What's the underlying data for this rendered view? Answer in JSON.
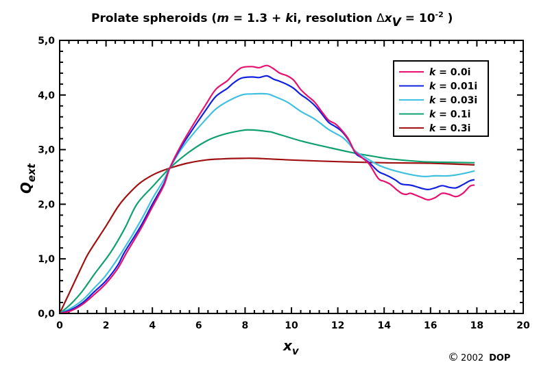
{
  "chart_data": {
    "type": "line",
    "title": {
      "prefix": "Prolate spheroids (",
      "m": "m",
      "eq": " = 1.3 + ",
      "k": "k",
      "i": "i, resolution ",
      "delta": "Δ",
      "x": "x",
      "sub_v": "V",
      "eq2": " = 10",
      "sup": "-2",
      "suffix": " )"
    },
    "xlabel": {
      "main": "x",
      "sub": "v"
    },
    "ylabel": {
      "main": "Q",
      "sub": "ext"
    },
    "xlim": [
      0,
      20
    ],
    "ylim": [
      0,
      5
    ],
    "xticks": [
      "0",
      "2",
      "4",
      "6",
      "8",
      "10",
      "12",
      "14",
      "16",
      "18",
      "20"
    ],
    "yticks": [
      "0,0",
      "1,0",
      "2,0",
      "3,0",
      "4,0",
      "5,0"
    ],
    "grid": false,
    "legend_position": "top-right",
    "series": [
      {
        "name": "k = 0.0i",
        "k_label": "k",
        "value_label": " = 0.0i",
        "color": "#e8106e",
        "x": [
          0,
          0.5,
          1,
          1.5,
          2,
          2.5,
          2.9,
          3.5,
          4,
          4.5,
          4.75,
          5.2,
          5.78,
          6.3,
          6.73,
          7.23,
          7.5,
          7.85,
          8.3,
          8.6,
          8.94,
          9.23,
          9.5,
          9.82,
          10.1,
          10.4,
          10.7,
          11.0,
          11.3,
          11.6,
          11.9,
          12.18,
          12.45,
          12.68,
          12.77,
          13.05,
          13.36,
          13.75,
          14.0,
          14.25,
          14.5,
          14.75,
          14.95,
          15.13,
          15.4,
          15.63,
          15.9,
          16.2,
          16.5,
          16.8,
          17.1,
          17.4,
          17.7,
          17.9
        ],
        "y": [
          0,
          0.05,
          0.17,
          0.35,
          0.55,
          0.82,
          1.12,
          1.55,
          1.95,
          2.35,
          2.66,
          3.05,
          3.47,
          3.82,
          4.1,
          4.26,
          4.38,
          4.5,
          4.52,
          4.5,
          4.54,
          4.48,
          4.4,
          4.35,
          4.27,
          4.1,
          3.98,
          3.87,
          3.7,
          3.54,
          3.47,
          3.35,
          3.2,
          3.0,
          2.95,
          2.85,
          2.73,
          2.47,
          2.42,
          2.37,
          2.28,
          2.2,
          2.18,
          2.2,
          2.16,
          2.12,
          2.08,
          2.12,
          2.2,
          2.18,
          2.14,
          2.2,
          2.33,
          2.35
        ]
      },
      {
        "name": "k = 0.01i",
        "k_label": "k",
        "value_label": " = 0.01i",
        "color": "#1020e0",
        "x": [
          0,
          0.5,
          1,
          1.5,
          2,
          2.5,
          2.8,
          3.5,
          4,
          4.5,
          4.75,
          5.2,
          5.78,
          6.3,
          6.73,
          7.23,
          7.5,
          7.85,
          8.3,
          8.6,
          8.94,
          9.23,
          9.5,
          9.82,
          10.1,
          10.4,
          10.7,
          11.0,
          11.3,
          11.6,
          11.9,
          12.18,
          12.5,
          12.77,
          13.05,
          13.36,
          13.75,
          14.0,
          14.25,
          14.5,
          14.75,
          15.13,
          15.4,
          15.63,
          15.9,
          16.2,
          16.5,
          16.8,
          17.1,
          17.4,
          17.7,
          17.9
        ],
        "y": [
          0,
          0.07,
          0.2,
          0.4,
          0.6,
          0.88,
          1.12,
          1.6,
          2.0,
          2.38,
          2.66,
          3.02,
          3.4,
          3.72,
          3.97,
          4.12,
          4.22,
          4.31,
          4.33,
          4.32,
          4.35,
          4.29,
          4.25,
          4.19,
          4.12,
          4.01,
          3.92,
          3.81,
          3.66,
          3.5,
          3.42,
          3.33,
          3.15,
          2.93,
          2.85,
          2.76,
          2.6,
          2.55,
          2.5,
          2.44,
          2.37,
          2.35,
          2.32,
          2.29,
          2.27,
          2.3,
          2.34,
          2.31,
          2.3,
          2.36,
          2.43,
          2.45
        ]
      },
      {
        "name": "k = 0.03i",
        "k_label": "k",
        "value_label": " = 0.03i",
        "color": "#40c0e0",
        "x": [
          0,
          0.5,
          1,
          1.5,
          2,
          2.68,
          3.5,
          4,
          4.5,
          4.75,
          5.2,
          5.78,
          6.3,
          6.73,
          7.23,
          7.85,
          8.3,
          8.94,
          9.23,
          9.82,
          10.4,
          11.0,
          11.6,
          12.18,
          12.5,
          12.77,
          13.36,
          13.9,
          14.75,
          15.63,
          16.2,
          16.8,
          17.4,
          17.9
        ],
        "y": [
          0,
          0.1,
          0.25,
          0.47,
          0.7,
          1.12,
          1.7,
          2.1,
          2.45,
          2.66,
          2.98,
          3.3,
          3.55,
          3.74,
          3.88,
          4.0,
          4.02,
          4.02,
          3.98,
          3.87,
          3.7,
          3.56,
          3.37,
          3.23,
          3.1,
          2.97,
          2.81,
          2.69,
          2.58,
          2.51,
          2.52,
          2.52,
          2.56,
          2.61
        ]
      },
      {
        "name": "k = 0.1i",
        "k_label": "k",
        "value_label": " = 0.1i",
        "color": "#10a070",
        "x": [
          0,
          0.5,
          1,
          1.5,
          2.2,
          2.8,
          3.33,
          4,
          4.75,
          5.5,
          6.3,
          7,
          7.85,
          8.3,
          9,
          9.23,
          10.4,
          11.6,
          12.68,
          13.5,
          14.25,
          15.63,
          16.5,
          17.9
        ],
        "y": [
          0,
          0.18,
          0.42,
          0.72,
          1.12,
          1.55,
          2.0,
          2.32,
          2.66,
          2.93,
          3.15,
          3.27,
          3.35,
          3.36,
          3.33,
          3.31,
          3.16,
          3.04,
          2.94,
          2.88,
          2.83,
          2.78,
          2.77,
          2.76
        ]
      },
      {
        "name": "k = 0.3i",
        "k_label": "k",
        "value_label": " = 0.3i",
        "color": "#a01010",
        "x": [
          0,
          0.5,
          1,
          1.27,
          2,
          2.54,
          3,
          3.5,
          4.13,
          4.75,
          5.5,
          6.3,
          7,
          7.85,
          8.5,
          10,
          12,
          14,
          16,
          17.9
        ],
        "y": [
          0,
          0.45,
          0.9,
          1.12,
          1.6,
          1.97,
          2.2,
          2.4,
          2.56,
          2.66,
          2.75,
          2.81,
          2.83,
          2.84,
          2.84,
          2.81,
          2.78,
          2.76,
          2.75,
          2.72
        ]
      }
    ]
  },
  "copyright": {
    "symbol": "©",
    "year": "2002",
    "owner": "DOP"
  }
}
